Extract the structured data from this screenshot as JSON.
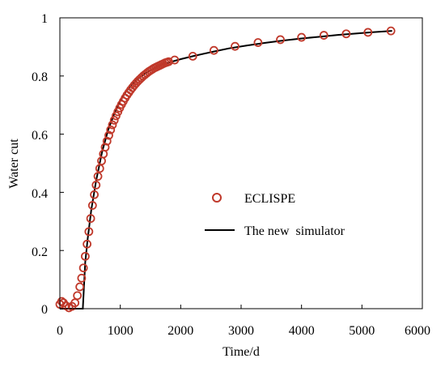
{
  "chart_data": {
    "type": "scatter",
    "xlabel": "Time/d",
    "ylabel": "Water cut",
    "xlim": [
      0,
      6000
    ],
    "ylim": [
      0,
      1
    ],
    "x_ticks": [
      "0",
      "1000",
      "2000",
      "3000",
      "4000",
      "5000",
      "6000"
    ],
    "y_ticks": [
      "0",
      "0.2",
      "0.4",
      "0.6",
      "0.8",
      "1"
    ],
    "grid": false,
    "legend_position": "center-right",
    "series": [
      {
        "name": "ECLISPE",
        "style": "markers",
        "marker": "hollow-circle",
        "color": "#c0392b",
        "x": [
          0,
          30,
          60,
          100,
          150,
          200,
          250,
          290,
          330,
          360,
          390,
          420,
          450,
          480,
          510,
          540,
          570,
          600,
          630,
          660,
          690,
          720,
          750,
          780,
          810,
          840,
          870,
          900,
          930,
          960,
          990,
          1020,
          1050,
          1080,
          1110,
          1140,
          1170,
          1200,
          1230,
          1260,
          1290,
          1320,
          1350,
          1380,
          1410,
          1440,
          1470,
          1500,
          1530,
          1560,
          1590,
          1620,
          1650,
          1680,
          1710,
          1740,
          1770,
          1800,
          1900,
          2200,
          2550,
          2900,
          3280,
          3650,
          4000,
          4370,
          4740,
          5100,
          5480
        ],
        "y": [
          0.015,
          0.025,
          0.02,
          0.01,
          0.003,
          0.008,
          0.02,
          0.045,
          0.075,
          0.105,
          0.14,
          0.18,
          0.222,
          0.265,
          0.31,
          0.355,
          0.392,
          0.425,
          0.455,
          0.482,
          0.508,
          0.532,
          0.555,
          0.576,
          0.596,
          0.615,
          0.632,
          0.648,
          0.663,
          0.677,
          0.69,
          0.702,
          0.713,
          0.724,
          0.734,
          0.743,
          0.752,
          0.76,
          0.768,
          0.775,
          0.782,
          0.788,
          0.794,
          0.8,
          0.805,
          0.81,
          0.815,
          0.819,
          0.823,
          0.827,
          0.83,
          0.833,
          0.836,
          0.839,
          0.842,
          0.845,
          0.847,
          0.849,
          0.855,
          0.868,
          0.888,
          0.902,
          0.915,
          0.925,
          0.933,
          0.94,
          0.945,
          0.95,
          0.955
        ]
      },
      {
        "name": "The new  simulator",
        "style": "line",
        "color": "#000000",
        "x": [
          0,
          80,
          160,
          240,
          320,
          380,
          420,
          460,
          520,
          600,
          700,
          800,
          900,
          1000,
          1100,
          1200,
          1300,
          1400,
          1500,
          1600,
          1700,
          1800,
          1900,
          2000,
          2200,
          2500,
          2800,
          3100,
          3400,
          3700,
          4000,
          4300,
          4600,
          4900,
          5200,
          5500
        ],
        "y": [
          0,
          0,
          0,
          0,
          0,
          0,
          0.16,
          0.24,
          0.34,
          0.44,
          0.54,
          0.615,
          0.67,
          0.715,
          0.748,
          0.773,
          0.792,
          0.807,
          0.82,
          0.83,
          0.839,
          0.846,
          0.852,
          0.858,
          0.868,
          0.882,
          0.895,
          0.905,
          0.914,
          0.922,
          0.929,
          0.935,
          0.941,
          0.946,
          0.951,
          0.955
        ]
      }
    ]
  }
}
